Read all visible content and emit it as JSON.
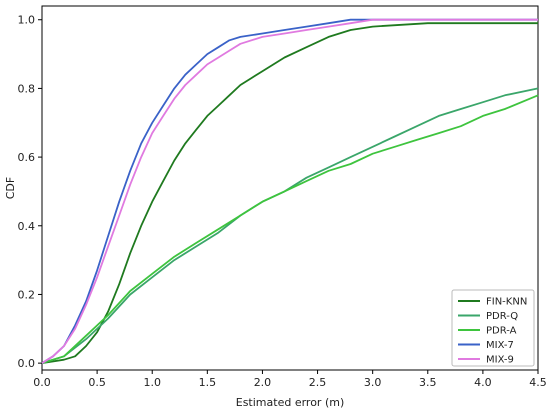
{
  "chart_data": {
    "type": "line",
    "title": "",
    "xlabel": "Estimated error (m)",
    "ylabel": "CDF",
    "xlim": [
      0,
      4.5
    ],
    "ylim": [
      -0.02,
      1.04
    ],
    "xticks": [
      "0.0",
      "0.5",
      "1.0",
      "1.5",
      "2.0",
      "2.5",
      "3.0",
      "3.5",
      "4.0",
      "4.5"
    ],
    "yticks": [
      "0.0",
      "0.2",
      "0.4",
      "0.6",
      "0.8",
      "1.0"
    ],
    "grid": false,
    "legend_position": "bottom-right",
    "series": [
      {
        "name": "FIN-KNN",
        "color": "#1f7a1f",
        "x": [
          0,
          0.2,
          0.3,
          0.4,
          0.5,
          0.6,
          0.7,
          0.8,
          0.9,
          1.0,
          1.1,
          1.2,
          1.3,
          1.4,
          1.5,
          1.6,
          1.7,
          1.8,
          1.9,
          2.0,
          2.2,
          2.4,
          2.6,
          2.8,
          3.0,
          3.5,
          4.0,
          4.5
        ],
        "y": [
          0.0,
          0.01,
          0.02,
          0.05,
          0.09,
          0.15,
          0.23,
          0.32,
          0.4,
          0.47,
          0.53,
          0.59,
          0.64,
          0.68,
          0.72,
          0.75,
          0.78,
          0.81,
          0.83,
          0.85,
          0.89,
          0.92,
          0.95,
          0.97,
          0.98,
          0.99,
          0.99,
          0.99
        ]
      },
      {
        "name": "PDR-Q",
        "color": "#3aa66a",
        "x": [
          0,
          0.2,
          0.4,
          0.6,
          0.8,
          1.0,
          1.2,
          1.4,
          1.6,
          1.8,
          2.0,
          2.2,
          2.4,
          2.6,
          2.8,
          3.0,
          3.2,
          3.4,
          3.6,
          3.8,
          4.0,
          4.2,
          4.5
        ],
        "y": [
          0.0,
          0.02,
          0.07,
          0.13,
          0.2,
          0.25,
          0.3,
          0.34,
          0.38,
          0.43,
          0.47,
          0.5,
          0.54,
          0.57,
          0.6,
          0.63,
          0.66,
          0.69,
          0.72,
          0.74,
          0.76,
          0.78,
          0.8
        ]
      },
      {
        "name": "PDR-A",
        "color": "#3ec43e",
        "x": [
          0,
          0.2,
          0.4,
          0.6,
          0.8,
          1.0,
          1.2,
          1.4,
          1.6,
          1.8,
          2.0,
          2.2,
          2.4,
          2.6,
          2.8,
          3.0,
          3.2,
          3.4,
          3.6,
          3.8,
          4.0,
          4.2,
          4.5
        ],
        "y": [
          0.0,
          0.02,
          0.08,
          0.14,
          0.21,
          0.26,
          0.31,
          0.35,
          0.39,
          0.43,
          0.47,
          0.5,
          0.53,
          0.56,
          0.58,
          0.61,
          0.63,
          0.65,
          0.67,
          0.69,
          0.72,
          0.74,
          0.78
        ]
      },
      {
        "name": "MIX-7",
        "color": "#3a62c8",
        "x": [
          0,
          0.1,
          0.2,
          0.3,
          0.4,
          0.5,
          0.6,
          0.7,
          0.8,
          0.9,
          1.0,
          1.1,
          1.2,
          1.3,
          1.4,
          1.5,
          1.6,
          1.7,
          1.8,
          2.0,
          2.2,
          2.4,
          2.6,
          2.8,
          3.0,
          3.5,
          4.0,
          4.5
        ],
        "y": [
          0.0,
          0.02,
          0.05,
          0.11,
          0.18,
          0.27,
          0.37,
          0.47,
          0.56,
          0.64,
          0.7,
          0.75,
          0.8,
          0.84,
          0.87,
          0.9,
          0.92,
          0.94,
          0.95,
          0.96,
          0.97,
          0.98,
          0.99,
          1.0,
          1.0,
          1.0,
          1.0,
          1.0
        ]
      },
      {
        "name": "MIX-9",
        "color": "#e07ae0",
        "x": [
          0,
          0.1,
          0.2,
          0.3,
          0.4,
          0.5,
          0.6,
          0.7,
          0.8,
          0.9,
          1.0,
          1.1,
          1.2,
          1.3,
          1.4,
          1.5,
          1.6,
          1.7,
          1.8,
          2.0,
          2.2,
          2.4,
          2.6,
          2.8,
          3.0,
          3.5,
          4.0,
          4.5
        ],
        "y": [
          0.0,
          0.02,
          0.05,
          0.1,
          0.17,
          0.25,
          0.34,
          0.43,
          0.52,
          0.6,
          0.67,
          0.72,
          0.77,
          0.81,
          0.84,
          0.87,
          0.89,
          0.91,
          0.93,
          0.95,
          0.96,
          0.97,
          0.98,
          0.99,
          1.0,
          1.0,
          1.0,
          1.0
        ]
      }
    ]
  }
}
